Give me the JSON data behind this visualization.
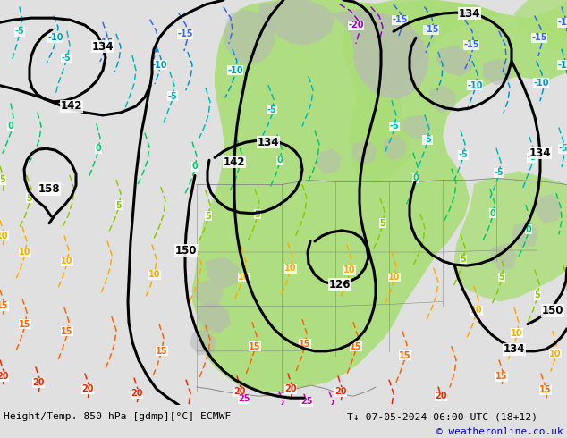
{
  "title_left": "Height/Temp. 850 hPa [gdmp][°C] ECMWF",
  "title_right": "T↓ 07-05-2024 06:00 UTC (18+12)",
  "copyright": "© weatheronline.co.uk",
  "bg_color": "#e0e0e0",
  "green_fill": "#aadd77",
  "gray_terrain": "#b8b8b8",
  "fig_width": 6.34,
  "fig_height": 4.9,
  "dpi": 100,
  "white_bar": "#ffffff",
  "copyright_color": "#0000cc"
}
